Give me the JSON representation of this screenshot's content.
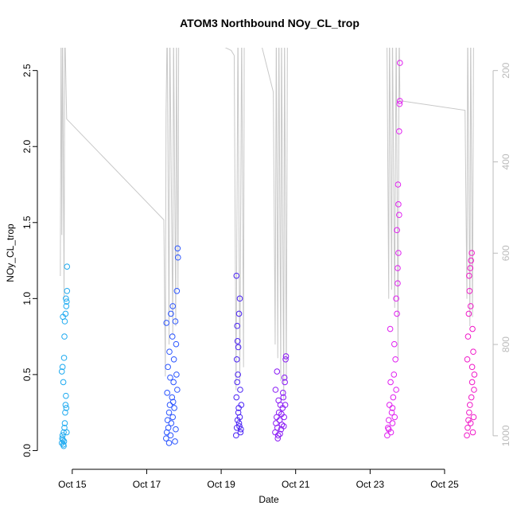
{
  "chart_data": {
    "type": "scatter",
    "title": "ATOM3 Northbound NOy_CL_trop",
    "x_label": "Date",
    "y_label": "NOy_CL_trop",
    "xlim": [
      14.32,
      26.24
    ],
    "ylim": [
      -0.05,
      2.65
    ],
    "y2lim": [
      1049,
      150
    ],
    "xticks": [
      {
        "value": 15,
        "label": "Oct 15"
      },
      {
        "value": 17,
        "label": "Oct 17"
      },
      {
        "value": 19,
        "label": "Oct 19"
      },
      {
        "value": 21,
        "label": "Oct 21"
      },
      {
        "value": 23,
        "label": "Oct 23"
      },
      {
        "value": 25,
        "label": "Oct 25"
      }
    ],
    "yticks": [
      {
        "value": 0,
        "label": "0.0"
      },
      0.5,
      {
        "value": 1,
        "label": "1.0"
      },
      1.5,
      {
        "value": 2,
        "label": "2.0"
      },
      2.5
    ],
    "y2ticks": [
      200,
      400,
      600,
      800,
      1000
    ],
    "series": [
      {
        "color": "#1eaaf0",
        "x": [
          14.72,
          14.73,
          14.74,
          14.75,
          14.76,
          14.77,
          14.78,
          14.79,
          14.8,
          14.81,
          14.82,
          14.83,
          14.84,
          14.85,
          14.72,
          14.74,
          14.76,
          14.78,
          14.8,
          14.82,
          14.84,
          14.86,
          14.75,
          14.79,
          14.83,
          14.85,
          14.86,
          14.77
        ],
        "values": [
          0.05,
          0.08,
          0.1,
          0.07,
          0.04,
          0.12,
          0.06,
          0.15,
          0.18,
          0.25,
          0.3,
          0.36,
          0.28,
          0.12,
          0.52,
          0.55,
          0.45,
          0.61,
          0.85,
          0.9,
          0.95,
          1.05,
          0.88,
          0.75,
          1.0,
          0.98,
          1.21,
          0.03
        ]
      },
      {
        "color": "#2b55ff",
        "x": [
          17.52,
          17.54,
          17.56,
          17.58,
          17.6,
          17.62,
          17.64,
          17.66,
          17.68,
          17.7,
          17.72,
          17.74,
          17.76,
          17.78,
          17.8,
          17.82,
          17.53,
          17.57,
          17.61,
          17.65,
          17.69,
          17.73,
          17.77,
          17.81,
          17.55,
          17.63,
          17.71,
          17.79,
          17.83,
          17.84,
          17.6,
          17.7
        ],
        "values": [
          0.08,
          0.12,
          0.2,
          0.15,
          0.25,
          0.3,
          0.1,
          0.18,
          0.35,
          0.22,
          0.45,
          0.28,
          0.06,
          0.14,
          0.5,
          0.4,
          0.84,
          0.55,
          0.65,
          0.9,
          0.75,
          0.6,
          0.85,
          1.05,
          0.38,
          0.48,
          0.32,
          0.7,
          1.33,
          1.27,
          0.05,
          0.95
        ]
      },
      {
        "color": "#4a22f5",
        "x": [
          19.4,
          19.42,
          19.44,
          19.46,
          19.48,
          19.5,
          19.52,
          19.54,
          19.41,
          19.43,
          19.45,
          19.47,
          19.49,
          19.51,
          19.53,
          19.42,
          19.44,
          19.46,
          19.48,
          19.5,
          19.41,
          19.43
        ],
        "values": [
          0.1,
          0.15,
          0.2,
          0.25,
          0.18,
          0.22,
          0.12,
          0.3,
          0.35,
          0.45,
          0.5,
          0.28,
          0.16,
          0.4,
          0.14,
          0.6,
          0.72,
          0.68,
          0.9,
          1.0,
          1.15,
          0.82
        ]
      },
      {
        "color": "#8a1af5",
        "x": [
          20.45,
          20.47,
          20.49,
          20.51,
          20.53,
          20.55,
          20.57,
          20.59,
          20.61,
          20.63,
          20.65,
          20.67,
          20.69,
          20.71,
          20.73,
          20.46,
          20.5,
          20.54,
          20.58,
          20.62,
          20.66,
          20.7,
          20.74,
          20.52,
          20.68,
          20.72
        ],
        "values": [
          0.12,
          0.18,
          0.22,
          0.15,
          0.1,
          0.25,
          0.2,
          0.3,
          0.14,
          0.17,
          0.28,
          0.35,
          0.22,
          0.45,
          0.6,
          0.4,
          0.52,
          0.33,
          0.11,
          0.24,
          0.38,
          0.48,
          0.62,
          0.08,
          0.16,
          0.3
        ]
      },
      {
        "color": "#e020f0",
        "x": [
          23.46,
          23.48,
          23.5,
          23.52,
          23.54,
          23.56,
          23.58,
          23.6,
          23.62,
          23.64,
          23.66,
          23.68,
          23.7,
          23.72,
          23.74,
          23.76,
          23.78,
          23.8,
          23.5,
          23.55,
          23.6,
          23.65,
          23.7,
          23.75,
          23.78,
          23.8,
          23.72,
          23.76,
          23.79,
          23.74
        ],
        "values": [
          0.1,
          0.15,
          0.2,
          0.3,
          0.8,
          0.12,
          0.25,
          0.18,
          0.35,
          0.5,
          0.22,
          0.6,
          0.4,
          0.9,
          1.1,
          1.3,
          1.55,
          2.3,
          0.14,
          0.45,
          0.28,
          0.7,
          1.0,
          1.75,
          2.1,
          2.55,
          1.45,
          1.62,
          2.28,
          1.2
        ]
      },
      {
        "color": "#f018c8",
        "x": [
          25.6,
          25.62,
          25.64,
          25.66,
          25.68,
          25.7,
          25.72,
          25.74,
          25.76,
          25.78,
          25.8,
          25.61,
          25.63,
          25.65,
          25.67,
          25.69,
          25.71,
          25.73,
          25.75,
          25.77,
          25.79,
          25.66,
          25.7,
          25.74
        ],
        "values": [
          0.1,
          0.15,
          0.2,
          0.25,
          0.3,
          0.18,
          0.35,
          0.45,
          0.12,
          0.22,
          0.5,
          0.6,
          0.75,
          0.9,
          1.05,
          1.2,
          1.25,
          1.3,
          0.8,
          0.65,
          0.4,
          1.15,
          0.95,
          0.55
        ]
      },
      {
        "type": "line",
        "axis": "y2",
        "color": "#c8c8c8",
        "x": [
          14.68,
          14.7,
          14.72,
          14.74,
          14.78,
          14.8,
          14.85,
          17.46,
          17.5,
          17.52,
          17.55,
          17.6,
          17.62,
          17.7,
          17.72,
          17.78,
          17.8,
          17.84,
          17.86,
          19.27,
          19.35,
          19.4,
          19.45,
          19.5,
          19.55,
          19.6,
          19.62,
          20.1,
          20.4,
          20.45,
          20.48,
          20.52,
          20.55,
          20.6,
          20.62,
          20.68,
          20.7,
          20.75,
          20.78,
          23.45,
          23.5,
          23.52,
          23.58,
          23.6,
          23.66,
          23.7,
          23.75,
          23.78,
          23.8,
          25.55,
          25.6,
          25.62,
          25.68,
          25.7,
          25.75,
          25.78,
          25.82
        ],
        "values": [
          650,
          100,
          560,
          100,
          700,
          100,
          306,
          527,
          870,
          290,
          100,
          800,
          100,
          780,
          100,
          760,
          100,
          680,
          100,
          156,
          167,
          900,
          100,
          880,
          100,
          850,
          100,
          150,
          247,
          800,
          100,
          830,
          100,
          880,
          100,
          920,
          100,
          880,
          100,
          100,
          700,
          100,
          680,
          100,
          720,
          100,
          830,
          100,
          266,
          287,
          700,
          100,
          760,
          100,
          740,
          100,
          100
        ]
      }
    ]
  }
}
